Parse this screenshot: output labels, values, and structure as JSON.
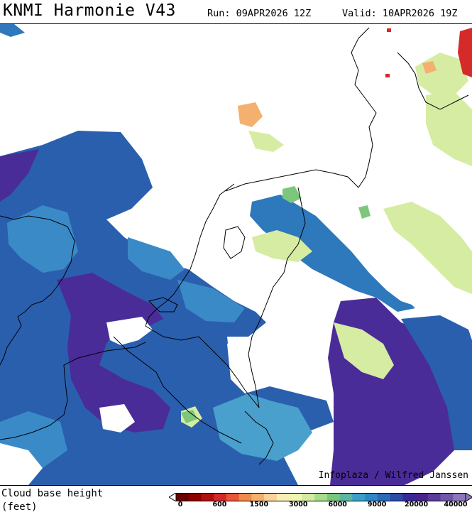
{
  "header": {
    "title": "KNMI Harmonie V43",
    "run": "Run: 09APR2026 12Z",
    "valid": "Valid: 10APR2026 19Z"
  },
  "map": {
    "credit": "Infoplaza / Wilfred Janssen"
  },
  "legend": {
    "label_line1": "Cloud base height",
    "label_line2": "(feet)",
    "tick_labels": [
      "0",
      "600",
      "1500",
      "3000",
      "6000",
      "9000",
      "20000",
      "40000"
    ],
    "colors": [
      "#6b0000",
      "#8c0000",
      "#b01010",
      "#d22a2a",
      "#e8553a",
      "#f08a4a",
      "#f5b06e",
      "#f8d49a",
      "#fbeeb4",
      "#eef6b0",
      "#d3eca0",
      "#a8dc8c",
      "#78c87c",
      "#5ab8a0",
      "#3aa0c8",
      "#2e88c6",
      "#2a6cb8",
      "#2a4ea8",
      "#3a2a98",
      "#4a248e",
      "#5c3c9a",
      "#7058a8",
      "#8a78b8"
    ]
  }
}
